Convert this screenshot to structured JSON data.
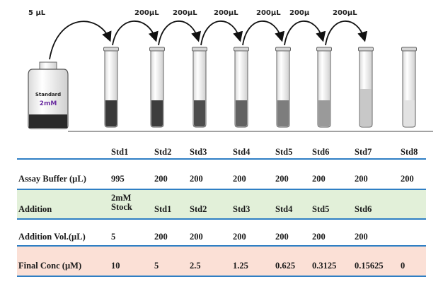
{
  "transfer_labels": [
    "5 µL",
    "200µL",
    "200µL",
    "200µL",
    "200µL",
    "200µ",
    "200µL"
  ],
  "bottle": {
    "label": "Standard",
    "concentration": "2mM"
  },
  "tube_fill_colors": [
    "#3a3a3a",
    "#3d3d3d",
    "#4d4d4d",
    "#626262",
    "#7d7d7d",
    "#9a9a9a",
    "#c8c8c8",
    "#e2e2e2"
  ],
  "colors": {
    "rule": "#2f7fc4",
    "addition_band": "#e2f0d9",
    "final_band": "#fbe0d6"
  },
  "table": {
    "header": [
      "Std1",
      "Std2",
      "Std3",
      "Std4",
      "Std5",
      "Std6",
      "Std7",
      "Std8"
    ],
    "rows": [
      {
        "label": "Assay Buffer (µL)",
        "values": [
          "995",
          "200",
          "200",
          "200",
          "200",
          "200",
          "200",
          "200"
        ]
      },
      {
        "label": "Addition",
        "values": [
          "2mM\nStock",
          "Std1",
          "Std2",
          "Std3",
          "Std4",
          "Std5",
          "Std6",
          ""
        ]
      },
      {
        "label": "Addition Vol.(µL)",
        "values": [
          "5",
          "200",
          "200",
          "200",
          "200",
          "200",
          "200",
          ""
        ]
      },
      {
        "label": "Final Conc (µM)",
        "values": [
          "10",
          "5",
          "2.5",
          "1.25",
          "0.625",
          "0.3125",
          "0.15625",
          "0"
        ]
      }
    ]
  }
}
